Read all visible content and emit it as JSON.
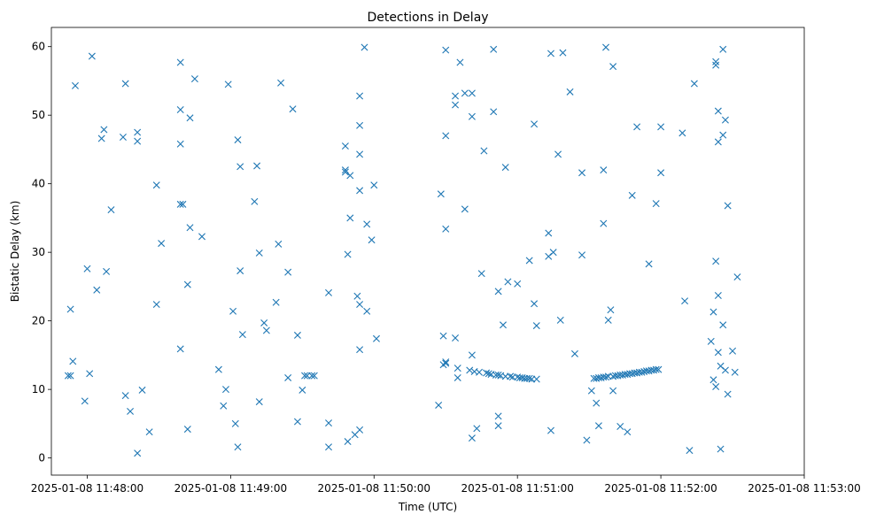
{
  "chart_data": {
    "type": "scatter",
    "title": "Detections in Delay",
    "xlabel": "Time (UTC)",
    "ylabel": "Bistatic Delay (km)",
    "x_axis_type": "datetime",
    "xlim": [
      "2025-01-08 11:47:45",
      "2025-01-08 11:53:00"
    ],
    "ylim": [
      -2.5,
      62.8
    ],
    "x_ticks": [
      "2025-01-08 11:48:00",
      "2025-01-08 11:49:00",
      "2025-01-08 11:50:00",
      "2025-01-08 11:51:00",
      "2025-01-08 11:52:00",
      "2025-01-08 11:53:00"
    ],
    "y_ticks": [
      0,
      10,
      20,
      30,
      40,
      50,
      60
    ],
    "marker": "x",
    "marker_color": "#1f77b4",
    "grid": false,
    "series": [
      {
        "points": [
          [
            "2025-01-08 11:47:52",
            12.0
          ],
          [
            "2025-01-08 11:47:53",
            12.0
          ],
          [
            "2025-01-08 11:47:53",
            21.7
          ],
          [
            "2025-01-08 11:47:54",
            14.1
          ],
          [
            "2025-01-08 11:47:55",
            54.3
          ],
          [
            "2025-01-08 11:47:59",
            8.3
          ],
          [
            "2025-01-08 11:48:00",
            27.6
          ],
          [
            "2025-01-08 11:48:01",
            12.3
          ],
          [
            "2025-01-08 11:48:02",
            58.6
          ],
          [
            "2025-01-08 11:48:04",
            24.5
          ],
          [
            "2025-01-08 11:48:06",
            46.6
          ],
          [
            "2025-01-08 11:48:07",
            47.9
          ],
          [
            "2025-01-08 11:48:08",
            27.2
          ],
          [
            "2025-01-08 11:48:10",
            36.2
          ],
          [
            "2025-01-08 11:48:15",
            46.8
          ],
          [
            "2025-01-08 11:48:16",
            54.6
          ],
          [
            "2025-01-08 11:48:16",
            9.1
          ],
          [
            "2025-01-08 11:48:18",
            6.8
          ],
          [
            "2025-01-08 11:48:21",
            47.5
          ],
          [
            "2025-01-08 11:48:21",
            46.2
          ],
          [
            "2025-01-08 11:48:21",
            0.7
          ],
          [
            "2025-01-08 11:48:23",
            9.9
          ],
          [
            "2025-01-08 11:48:26",
            3.8
          ],
          [
            "2025-01-08 11:48:29",
            39.8
          ],
          [
            "2025-01-08 11:48:29",
            22.4
          ],
          [
            "2025-01-08 11:48:31",
            31.3
          ],
          [
            "2025-01-08 11:48:39",
            57.7
          ],
          [
            "2025-01-08 11:48:39",
            50.8
          ],
          [
            "2025-01-08 11:48:39",
            45.8
          ],
          [
            "2025-01-08 11:48:39",
            37.0
          ],
          [
            "2025-01-08 11:48:39",
            15.9
          ],
          [
            "2025-01-08 11:48:40",
            37.0
          ],
          [
            "2025-01-08 11:48:42",
            4.2
          ],
          [
            "2025-01-08 11:48:42",
            25.3
          ],
          [
            "2025-01-08 11:48:43",
            49.6
          ],
          [
            "2025-01-08 11:48:43",
            33.6
          ],
          [
            "2025-01-08 11:48:45",
            55.3
          ],
          [
            "2025-01-08 11:48:48",
            32.3
          ],
          [
            "2025-01-08 11:48:55",
            12.9
          ],
          [
            "2025-01-08 11:48:57",
            7.6
          ],
          [
            "2025-01-08 11:48:58",
            10.0
          ],
          [
            "2025-01-08 11:48:59",
            54.5
          ],
          [
            "2025-01-08 11:49:01",
            21.4
          ],
          [
            "2025-01-08 11:49:02",
            5.0
          ],
          [
            "2025-01-08 11:49:03",
            1.6
          ],
          [
            "2025-01-08 11:49:03",
            46.4
          ],
          [
            "2025-01-08 11:49:04",
            42.5
          ],
          [
            "2025-01-08 11:49:04",
            27.3
          ],
          [
            "2025-01-08 11:49:05",
            18.0
          ],
          [
            "2025-01-08 11:49:10",
            37.4
          ],
          [
            "2025-01-08 11:49:11",
            42.6
          ],
          [
            "2025-01-08 11:49:12",
            29.9
          ],
          [
            "2025-01-08 11:49:12",
            8.2
          ],
          [
            "2025-01-08 11:49:14",
            19.7
          ],
          [
            "2025-01-08 11:49:15",
            18.6
          ],
          [
            "2025-01-08 11:49:19",
            22.7
          ],
          [
            "2025-01-08 11:49:20",
            31.2
          ],
          [
            "2025-01-08 11:49:21",
            54.7
          ],
          [
            "2025-01-08 11:49:24",
            11.7
          ],
          [
            "2025-01-08 11:49:24",
            27.1
          ],
          [
            "2025-01-08 11:49:26",
            50.9
          ],
          [
            "2025-01-08 11:49:28",
            17.9
          ],
          [
            "2025-01-08 11:49:28",
            5.3
          ],
          [
            "2025-01-08 11:49:30",
            9.9
          ],
          [
            "2025-01-08 11:49:31",
            12.0
          ],
          [
            "2025-01-08 11:49:32",
            12.0
          ],
          [
            "2025-01-08 11:49:34",
            12.0
          ],
          [
            "2025-01-08 11:49:35",
            12.0
          ],
          [
            "2025-01-08 11:49:41",
            24.1
          ],
          [
            "2025-01-08 11:49:41",
            5.1
          ],
          [
            "2025-01-08 11:49:41",
            1.6
          ],
          [
            "2025-01-08 11:49:48",
            45.5
          ],
          [
            "2025-01-08 11:49:48",
            42.0
          ],
          [
            "2025-01-08 11:49:48",
            41.7
          ],
          [
            "2025-01-08 11:49:49",
            29.7
          ],
          [
            "2025-01-08 11:49:50",
            41.2
          ],
          [
            "2025-01-08 11:49:50",
            35.0
          ],
          [
            "2025-01-08 11:49:49",
            2.4
          ],
          [
            "2025-01-08 11:49:53",
            23.6
          ],
          [
            "2025-01-08 11:49:52",
            3.4
          ],
          [
            "2025-01-08 11:49:54",
            15.8
          ],
          [
            "2025-01-08 11:49:54",
            4.1
          ],
          [
            "2025-01-08 11:49:54",
            22.4
          ],
          [
            "2025-01-08 11:49:54",
            52.8
          ],
          [
            "2025-01-08 11:49:54",
            48.5
          ],
          [
            "2025-01-08 11:49:54",
            44.3
          ],
          [
            "2025-01-08 11:49:54",
            39.0
          ],
          [
            "2025-01-08 11:49:56",
            59.9
          ],
          [
            "2025-01-08 11:49:57",
            34.1
          ],
          [
            "2025-01-08 11:49:57",
            21.4
          ],
          [
            "2025-01-08 11:49:59",
            31.8
          ],
          [
            "2025-01-08 11:50:00",
            39.8
          ],
          [
            "2025-01-08 11:50:01",
            17.4
          ],
          [
            "2025-01-08 11:50:27",
            7.7
          ],
          [
            "2025-01-08 11:50:28",
            38.5
          ],
          [
            "2025-01-08 11:50:30",
            59.5
          ],
          [
            "2025-01-08 11:50:30",
            47.0
          ],
          [
            "2025-01-08 11:50:30",
            33.4
          ],
          [
            "2025-01-08 11:50:29",
            17.8
          ],
          [
            "2025-01-08 11:50:29",
            13.6
          ],
          [
            "2025-01-08 11:50:30",
            14.0
          ],
          [
            "2025-01-08 11:50:30",
            13.8
          ],
          [
            "2025-01-08 11:50:34",
            17.5
          ],
          [
            "2025-01-08 11:50:34",
            52.8
          ],
          [
            "2025-01-08 11:50:34",
            51.5
          ],
          [
            "2025-01-08 11:50:35",
            13.1
          ],
          [
            "2025-01-08 11:50:35",
            11.7
          ],
          [
            "2025-01-08 11:50:36",
            57.7
          ],
          [
            "2025-01-08 11:50:38",
            53.2
          ],
          [
            "2025-01-08 11:50:38",
            36.3
          ],
          [
            "2025-01-08 11:50:40",
            12.8
          ],
          [
            "2025-01-08 11:50:41",
            53.2
          ],
          [
            "2025-01-08 11:50:41",
            49.8
          ],
          [
            "2025-01-08 11:50:41",
            15.0
          ],
          [
            "2025-01-08 11:50:41",
            2.9
          ],
          [
            "2025-01-08 11:50:42",
            12.6
          ],
          [
            "2025-01-08 11:50:43",
            4.3
          ],
          [
            "2025-01-08 11:50:44",
            12.5
          ],
          [
            "2025-01-08 11:50:45",
            26.9
          ],
          [
            "2025-01-08 11:50:46",
            44.8
          ],
          [
            "2025-01-08 11:50:47",
            12.4
          ],
          [
            "2025-01-08 11:50:48",
            12.3
          ],
          [
            "2025-01-08 11:50:49",
            12.2
          ],
          [
            "2025-01-08 11:50:50",
            59.6
          ],
          [
            "2025-01-08 11:50:50",
            50.5
          ],
          [
            "2025-01-08 11:50:51",
            12.1
          ],
          [
            "2025-01-08 11:50:52",
            24.3
          ],
          [
            "2025-01-08 11:50:52",
            12.1
          ],
          [
            "2025-01-08 11:50:52",
            6.1
          ],
          [
            "2025-01-08 11:50:52",
            4.7
          ],
          [
            "2025-01-08 11:50:53",
            12.0
          ],
          [
            "2025-01-08 11:50:54",
            19.4
          ],
          [
            "2025-01-08 11:50:55",
            42.4
          ],
          [
            "2025-01-08 11:50:55",
            11.9
          ],
          [
            "2025-01-08 11:50:56",
            25.7
          ],
          [
            "2025-01-08 11:50:57",
            11.9
          ],
          [
            "2025-01-08 11:50:58",
            11.8
          ],
          [
            "2025-01-08 11:51:00",
            11.8
          ],
          [
            "2025-01-08 11:51:00",
            25.4
          ],
          [
            "2025-01-08 11:51:01",
            11.7
          ],
          [
            "2025-01-08 11:51:02",
            11.7
          ],
          [
            "2025-01-08 11:51:03",
            11.6
          ],
          [
            "2025-01-08 11:51:04",
            11.6
          ],
          [
            "2025-01-08 11:51:05",
            28.8
          ],
          [
            "2025-01-08 11:51:05",
            11.6
          ],
          [
            "2025-01-08 11:51:06",
            11.5
          ],
          [
            "2025-01-08 11:51:07",
            48.7
          ],
          [
            "2025-01-08 11:51:07",
            22.5
          ],
          [
            "2025-01-08 11:51:08",
            19.3
          ],
          [
            "2025-01-08 11:51:08",
            11.5
          ],
          [
            "2025-01-08 11:51:13",
            32.8
          ],
          [
            "2025-01-08 11:51:13",
            29.4
          ],
          [
            "2025-01-08 11:51:14",
            59.0
          ],
          [
            "2025-01-08 11:51:15",
            30.0
          ],
          [
            "2025-01-08 11:51:14",
            4.0
          ],
          [
            "2025-01-08 11:51:17",
            44.3
          ],
          [
            "2025-01-08 11:51:18",
            20.1
          ],
          [
            "2025-01-08 11:51:19",
            59.1
          ],
          [
            "2025-01-08 11:51:22",
            53.4
          ],
          [
            "2025-01-08 11:51:24",
            15.2
          ],
          [
            "2025-01-08 11:51:27",
            41.6
          ],
          [
            "2025-01-08 11:51:27",
            29.6
          ],
          [
            "2025-01-08 11:51:29",
            2.6
          ],
          [
            "2025-01-08 11:51:31",
            9.8
          ],
          [
            "2025-01-08 11:51:32",
            11.6
          ],
          [
            "2025-01-08 11:51:33",
            11.6
          ],
          [
            "2025-01-08 11:51:33",
            8.0
          ],
          [
            "2025-01-08 11:51:34",
            11.7
          ],
          [
            "2025-01-08 11:51:34",
            4.7
          ],
          [
            "2025-01-08 11:51:35",
            11.7
          ],
          [
            "2025-01-08 11:51:36",
            11.8
          ],
          [
            "2025-01-08 11:51:36",
            34.2
          ],
          [
            "2025-01-08 11:51:36",
            42.0
          ],
          [
            "2025-01-08 11:51:37",
            59.9
          ],
          [
            "2025-01-08 11:51:37",
            11.8
          ],
          [
            "2025-01-08 11:51:38",
            20.1
          ],
          [
            "2025-01-08 11:51:38",
            11.9
          ],
          [
            "2025-01-08 11:51:39",
            21.6
          ],
          [
            "2025-01-08 11:51:40",
            11.9
          ],
          [
            "2025-01-08 11:51:40",
            9.8
          ],
          [
            "2025-01-08 11:51:40",
            57.1
          ],
          [
            "2025-01-08 11:51:41",
            12.0
          ],
          [
            "2025-01-08 11:51:42",
            12.0
          ],
          [
            "2025-01-08 11:51:43",
            4.6
          ],
          [
            "2025-01-08 11:51:43",
            12.1
          ],
          [
            "2025-01-08 11:51:44",
            12.1
          ],
          [
            "2025-01-08 11:51:45",
            12.2
          ],
          [
            "2025-01-08 11:51:46",
            3.8
          ],
          [
            "2025-01-08 11:51:46",
            12.2
          ],
          [
            "2025-01-08 11:51:47",
            12.3
          ],
          [
            "2025-01-08 11:51:48",
            38.3
          ],
          [
            "2025-01-08 11:51:48",
            12.3
          ],
          [
            "2025-01-08 11:51:49",
            12.4
          ],
          [
            "2025-01-08 11:51:50",
            48.3
          ],
          [
            "2025-01-08 11:51:50",
            12.4
          ],
          [
            "2025-01-08 11:51:51",
            12.5
          ],
          [
            "2025-01-08 11:51:52",
            12.5
          ],
          [
            "2025-01-08 11:51:53",
            12.6
          ],
          [
            "2025-01-08 11:51:54",
            12.7
          ],
          [
            "2025-01-08 11:51:55",
            28.3
          ],
          [
            "2025-01-08 11:51:55",
            12.7
          ],
          [
            "2025-01-08 11:51:56",
            12.8
          ],
          [
            "2025-01-08 11:51:57",
            12.8
          ],
          [
            "2025-01-08 11:51:58",
            12.9
          ],
          [
            "2025-01-08 11:51:58",
            37.1
          ],
          [
            "2025-01-08 11:51:59",
            12.9
          ],
          [
            "2025-01-08 11:52:00",
            48.3
          ],
          [
            "2025-01-08 11:52:00",
            41.6
          ],
          [
            "2025-01-08 11:52:09",
            47.4
          ],
          [
            "2025-01-08 11:52:10",
            22.9
          ],
          [
            "2025-01-08 11:52:12",
            1.1
          ],
          [
            "2025-01-08 11:52:14",
            54.6
          ],
          [
            "2025-01-08 11:52:21",
            17.0
          ],
          [
            "2025-01-08 11:52:22",
            11.4
          ],
          [
            "2025-01-08 11:52:22",
            21.3
          ],
          [
            "2025-01-08 11:52:23",
            57.8
          ],
          [
            "2025-01-08 11:52:23",
            57.3
          ],
          [
            "2025-01-08 11:52:23",
            28.7
          ],
          [
            "2025-01-08 11:52:23",
            10.4
          ],
          [
            "2025-01-08 11:52:24",
            50.6
          ],
          [
            "2025-01-08 11:52:24",
            23.7
          ],
          [
            "2025-01-08 11:52:24",
            15.4
          ],
          [
            "2025-01-08 11:52:24",
            46.1
          ],
          [
            "2025-01-08 11:52:25",
            13.4
          ],
          [
            "2025-01-08 11:52:25",
            1.3
          ],
          [
            "2025-01-08 11:52:26",
            47.1
          ],
          [
            "2025-01-08 11:52:26",
            19.4
          ],
          [
            "2025-01-08 11:52:26",
            59.6
          ],
          [
            "2025-01-08 11:52:27",
            49.3
          ],
          [
            "2025-01-08 11:52:27",
            12.8
          ],
          [
            "2025-01-08 11:52:28",
            9.3
          ],
          [
            "2025-01-08 11:52:28",
            36.8
          ],
          [
            "2025-01-08 11:52:30",
            15.6
          ],
          [
            "2025-01-08 11:52:31",
            12.5
          ],
          [
            "2025-01-08 11:52:32",
            26.4
          ]
        ]
      }
    ]
  }
}
